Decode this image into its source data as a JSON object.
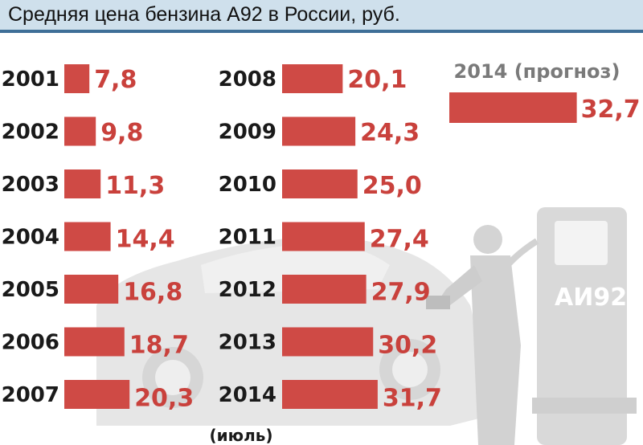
{
  "title": "Средняя цена бензина А92 в России, руб.",
  "pump_label": "АИ92",
  "colors": {
    "bar": "#cf4a45",
    "value_text": "#c9413c",
    "header_bg": "#cfe0ec",
    "header_line": "#3f6f97",
    "illustration": "#e4e4e4"
  },
  "chart_data": {
    "type": "bar",
    "orientation": "horizontal",
    "unit": "руб.",
    "groups": [
      {
        "categories": [
          "2001",
          "2002",
          "2003",
          "2004",
          "2005",
          "2006",
          "2007"
        ],
        "values": [
          7.8,
          9.8,
          11.3,
          14.4,
          16.8,
          18.7,
          20.3
        ]
      },
      {
        "categories": [
          "2008",
          "2009",
          "2010",
          "2011",
          "2012",
          "2013",
          "2014"
        ],
        "values": [
          20.1,
          24.3,
          25.0,
          27.4,
          27.9,
          30.2,
          31.7
        ],
        "notes": [
          "",
          "",
          "",
          "",
          "",
          "",
          "(июль)"
        ]
      },
      {
        "categories": [
          "2014 (прогноз)"
        ],
        "values": [
          32.7
        ]
      }
    ]
  }
}
